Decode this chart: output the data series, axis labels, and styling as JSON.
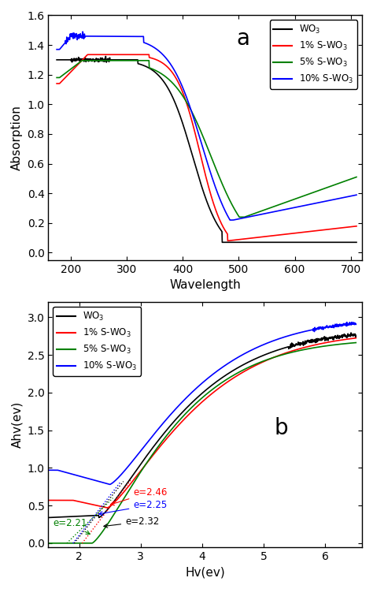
{
  "panel_a": {
    "xlabel": "Wavelength",
    "ylabel": "Absorption",
    "xlim": [
      160,
      720
    ],
    "ylim": [
      -0.05,
      1.6
    ],
    "yticks": [
      0.0,
      0.2,
      0.4,
      0.6,
      0.8,
      1.0,
      1.2,
      1.4,
      1.6
    ],
    "xticks": [
      200,
      300,
      400,
      500,
      600,
      700
    ],
    "legend_labels": [
      "WO$_3$",
      "1% S-WO$_3$",
      "5% S-WO$_3$",
      "10% S-WO$_3$"
    ],
    "colors": [
      "black",
      "red",
      "green",
      "blue"
    ],
    "label": "a"
  },
  "panel_b": {
    "xlabel": "Hv(ev)",
    "ylabel": "Ahv(ev)",
    "xlim": [
      1.5,
      6.6
    ],
    "ylim": [
      -0.05,
      3.2
    ],
    "yticks": [
      0.0,
      0.5,
      1.0,
      1.5,
      2.0,
      2.5,
      3.0
    ],
    "xticks": [
      2,
      3,
      4,
      5,
      6
    ],
    "legend_labels": [
      "WO$_3$",
      "1% S-WO$_3$",
      "5% S-WO$_3$",
      "10% S-WO$_3$"
    ],
    "colors": [
      "black",
      "red",
      "green",
      "blue"
    ],
    "label": "b"
  }
}
